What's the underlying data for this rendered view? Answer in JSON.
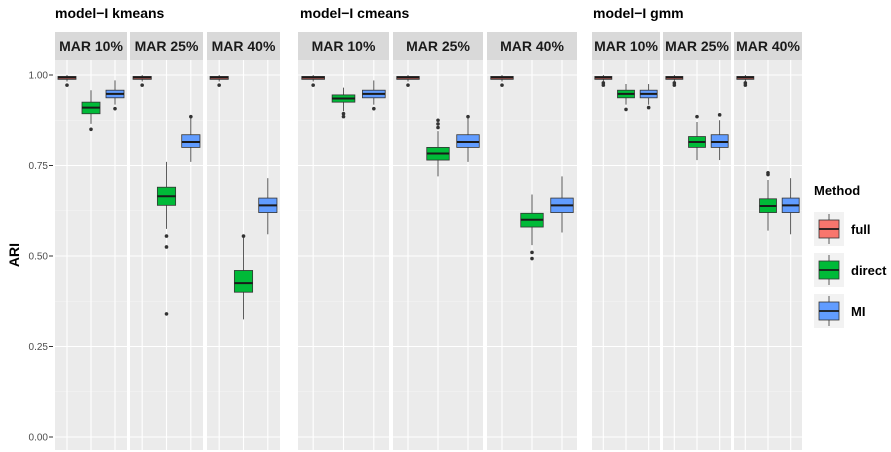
{
  "chart_data": {
    "type": "boxplot",
    "ylabel": "ARI",
    "ylim": [
      0,
      1
    ],
    "yticks": [
      "0.00",
      "0.25",
      "0.50",
      "0.75",
      "1.00"
    ],
    "ytick_values": [
      0,
      0.25,
      0.5,
      0.75,
      1.0
    ],
    "grid": true,
    "legend": {
      "title": "Method",
      "position": "right",
      "entries": [
        {
          "name": "full",
          "color": "#F8766D"
        },
        {
          "name": "direct",
          "color": "#00BA38"
        },
        {
          "name": "MI",
          "color": "#619CFF"
        }
      ]
    },
    "panels": [
      {
        "title": "model−I kmeans",
        "facets": [
          {
            "strip": "MAR 10%",
            "boxes": [
              {
                "method": "full",
                "q1": 0.988,
                "median": 0.993,
                "q3": 0.996,
                "whisker_low": 0.982,
                "whisker_high": 1.0,
                "outliers": [
                  0.972
                ]
              },
              {
                "method": "direct",
                "q1": 0.893,
                "median": 0.91,
                "q3": 0.925,
                "whisker_low": 0.865,
                "whisker_high": 0.958,
                "outliers": [
                  0.85
                ]
              },
              {
                "method": "MI",
                "q1": 0.937,
                "median": 0.948,
                "q3": 0.958,
                "whisker_low": 0.918,
                "whisker_high": 0.985,
                "outliers": [
                  0.907
                ]
              }
            ]
          },
          {
            "strip": "MAR 25%",
            "boxes": [
              {
                "method": "full",
                "q1": 0.988,
                "median": 0.993,
                "q3": 0.996,
                "whisker_low": 0.982,
                "whisker_high": 1.0,
                "outliers": [
                  0.972
                ]
              },
              {
                "method": "direct",
                "q1": 0.64,
                "median": 0.665,
                "q3": 0.69,
                "whisker_low": 0.575,
                "whisker_high": 0.76,
                "outliers": [
                  0.555,
                  0.525,
                  0.34
                ]
              },
              {
                "method": "MI",
                "q1": 0.8,
                "median": 0.815,
                "q3": 0.835,
                "whisker_low": 0.76,
                "whisker_high": 0.885,
                "outliers": [
                  0.885
                ]
              }
            ]
          },
          {
            "strip": "MAR 40%",
            "boxes": [
              {
                "method": "full",
                "q1": 0.988,
                "median": 0.993,
                "q3": 0.996,
                "whisker_low": 0.982,
                "whisker_high": 1.0,
                "outliers": [
                  0.972
                ]
              },
              {
                "method": "direct",
                "q1": 0.4,
                "median": 0.425,
                "q3": 0.46,
                "whisker_low": 0.325,
                "whisker_high": 0.555,
                "outliers": [
                  0.555
                ]
              },
              {
                "method": "MI",
                "q1": 0.62,
                "median": 0.64,
                "q3": 0.66,
                "whisker_low": 0.56,
                "whisker_high": 0.715,
                "outliers": []
              }
            ]
          }
        ]
      },
      {
        "title": "model−I cmeans",
        "facets": [
          {
            "strip": "MAR 10%",
            "boxes": [
              {
                "method": "full",
                "q1": 0.988,
                "median": 0.993,
                "q3": 0.996,
                "whisker_low": 0.982,
                "whisker_high": 1.0,
                "outliers": [
                  0.972
                ]
              },
              {
                "method": "direct",
                "q1": 0.925,
                "median": 0.935,
                "q3": 0.945,
                "whisker_low": 0.9,
                "whisker_high": 0.965,
                "outliers": [
                  0.893,
                  0.885
                ]
              },
              {
                "method": "MI",
                "q1": 0.937,
                "median": 0.948,
                "q3": 0.958,
                "whisker_low": 0.918,
                "whisker_high": 0.985,
                "outliers": [
                  0.907
                ]
              }
            ]
          },
          {
            "strip": "MAR 25%",
            "boxes": [
              {
                "method": "full",
                "q1": 0.988,
                "median": 0.993,
                "q3": 0.996,
                "whisker_low": 0.982,
                "whisker_high": 1.0,
                "outliers": [
                  0.972
                ]
              },
              {
                "method": "direct",
                "q1": 0.765,
                "median": 0.783,
                "q3": 0.8,
                "whisker_low": 0.72,
                "whisker_high": 0.845,
                "outliers": [
                  0.855,
                  0.865,
                  0.875
                ]
              },
              {
                "method": "MI",
                "q1": 0.8,
                "median": 0.815,
                "q3": 0.835,
                "whisker_low": 0.76,
                "whisker_high": 0.885,
                "outliers": [
                  0.885
                ]
              }
            ]
          },
          {
            "strip": "MAR 40%",
            "boxes": [
              {
                "method": "full",
                "q1": 0.988,
                "median": 0.993,
                "q3": 0.996,
                "whisker_low": 0.982,
                "whisker_high": 1.0,
                "outliers": [
                  0.972
                ]
              },
              {
                "method": "direct",
                "q1": 0.58,
                "median": 0.6,
                "q3": 0.618,
                "whisker_low": 0.53,
                "whisker_high": 0.67,
                "outliers": [
                  0.51,
                  0.493
                ]
              },
              {
                "method": "MI",
                "q1": 0.62,
                "median": 0.64,
                "q3": 0.66,
                "whisker_low": 0.565,
                "whisker_high": 0.72,
                "outliers": []
              }
            ]
          }
        ]
      },
      {
        "title": "model−I gmm",
        "facets": [
          {
            "strip": "MAR 10%",
            "boxes": [
              {
                "method": "full",
                "q1": 0.988,
                "median": 0.993,
                "q3": 0.996,
                "whisker_low": 0.982,
                "whisker_high": 1.0,
                "outliers": [
                  0.978,
                  0.972
                ]
              },
              {
                "method": "direct",
                "q1": 0.937,
                "median": 0.948,
                "q3": 0.958,
                "whisker_low": 0.918,
                "whisker_high": 0.975,
                "outliers": [
                  0.905
                ]
              },
              {
                "method": "MI",
                "q1": 0.937,
                "median": 0.948,
                "q3": 0.958,
                "whisker_low": 0.918,
                "whisker_high": 0.975,
                "outliers": [
                  0.91
                ]
              }
            ]
          },
          {
            "strip": "MAR 25%",
            "boxes": [
              {
                "method": "full",
                "q1": 0.988,
                "median": 0.993,
                "q3": 0.996,
                "whisker_low": 0.982,
                "whisker_high": 1.0,
                "outliers": [
                  0.978,
                  0.972
                ]
              },
              {
                "method": "direct",
                "q1": 0.8,
                "median": 0.815,
                "q3": 0.83,
                "whisker_low": 0.765,
                "whisker_high": 0.87,
                "outliers": [
                  0.885
                ]
              },
              {
                "method": "MI",
                "q1": 0.8,
                "median": 0.815,
                "q3": 0.835,
                "whisker_low": 0.765,
                "whisker_high": 0.875,
                "outliers": [
                  0.89
                ]
              }
            ]
          },
          {
            "strip": "MAR 40%",
            "boxes": [
              {
                "method": "full",
                "q1": 0.988,
                "median": 0.993,
                "q3": 0.996,
                "whisker_low": 0.982,
                "whisker_high": 1.0,
                "outliers": [
                  0.978,
                  0.972
                ]
              },
              {
                "method": "direct",
                "q1": 0.62,
                "median": 0.638,
                "q3": 0.658,
                "whisker_low": 0.57,
                "whisker_high": 0.71,
                "outliers": [
                  0.725,
                  0.73
                ]
              },
              {
                "method": "MI",
                "q1": 0.62,
                "median": 0.64,
                "q3": 0.66,
                "whisker_low": 0.56,
                "whisker_high": 0.715,
                "outliers": []
              }
            ]
          }
        ]
      }
    ]
  }
}
